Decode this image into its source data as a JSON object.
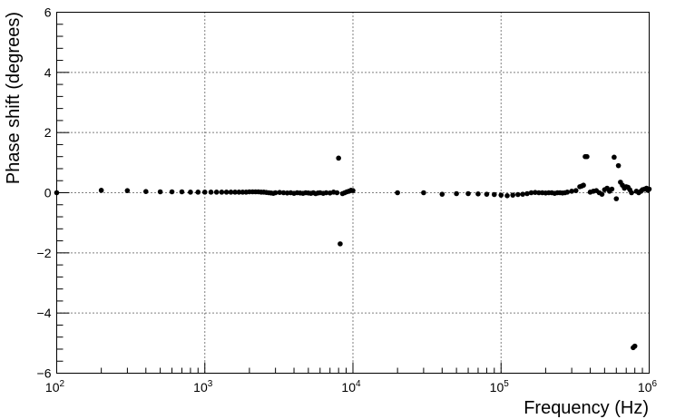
{
  "chart_data": {
    "type": "scatter",
    "xlabel": "Frequency (Hz)",
    "ylabel": "Phase shift (degrees)",
    "xscale": "log",
    "xlim": [
      100,
      1000000
    ],
    "ylim": [
      -6,
      6
    ],
    "grid": true,
    "x_tick_labels": [
      {
        "base": "10",
        "exp": "2",
        "value": 100
      },
      {
        "base": "10",
        "exp": "3",
        "value": 1000
      },
      {
        "base": "10",
        "exp": "4",
        "value": 10000
      },
      {
        "base": "10",
        "exp": "5",
        "value": 100000
      },
      {
        "base": "10",
        "exp": "6",
        "value": 1000000
      }
    ],
    "y_tick_labels": [
      {
        "label": "6",
        "value": 6
      },
      {
        "label": "4",
        "value": 4
      },
      {
        "label": "2",
        "value": 2
      },
      {
        "label": "0",
        "value": 0
      },
      {
        "label": "−2",
        "value": -2
      },
      {
        "label": "−4",
        "value": -4
      },
      {
        "label": "−6",
        "value": -6
      }
    ],
    "marker_color": "#000000",
    "points": [
      [
        100,
        0.0
      ],
      [
        200,
        0.08
      ],
      [
        300,
        0.07
      ],
      [
        400,
        0.04
      ],
      [
        500,
        0.03
      ],
      [
        600,
        0.03
      ],
      [
        700,
        0.03
      ],
      [
        800,
        0.02
      ],
      [
        900,
        0.02
      ],
      [
        1000,
        0.02
      ],
      [
        1100,
        0.02
      ],
      [
        1200,
        0.02
      ],
      [
        1300,
        0.02
      ],
      [
        1400,
        0.02
      ],
      [
        1500,
        0.02
      ],
      [
        1600,
        0.02
      ],
      [
        1700,
        0.02
      ],
      [
        1800,
        0.02
      ],
      [
        1900,
        0.02
      ],
      [
        2000,
        0.03
      ],
      [
        2100,
        0.03
      ],
      [
        2200,
        0.03
      ],
      [
        2300,
        0.03
      ],
      [
        2400,
        0.02
      ],
      [
        2500,
        0.02
      ],
      [
        2600,
        0.01
      ],
      [
        2700,
        0.0
      ],
      [
        2800,
        -0.01
      ],
      [
        2900,
        -0.02
      ],
      [
        3000,
        0.0
      ],
      [
        3200,
        0.01
      ],
      [
        3400,
        0.0
      ],
      [
        3600,
        -0.01
      ],
      [
        3800,
        0.0
      ],
      [
        4000,
        -0.02
      ],
      [
        4200,
        0.0
      ],
      [
        4400,
        -0.01
      ],
      [
        4600,
        -0.02
      ],
      [
        4800,
        0.0
      ],
      [
        5000,
        -0.01
      ],
      [
        5200,
        -0.02
      ],
      [
        5400,
        0.0
      ],
      [
        5600,
        -0.03
      ],
      [
        5800,
        -0.01
      ],
      [
        6000,
        0.0
      ],
      [
        6300,
        -0.02
      ],
      [
        6600,
        0.0
      ],
      [
        7000,
        -0.01
      ],
      [
        7400,
        0.02
      ],
      [
        7800,
        0.0
      ],
      [
        8000,
        1.15
      ],
      [
        8200,
        -1.7
      ],
      [
        8500,
        -0.03
      ],
      [
        8800,
        0.0
      ],
      [
        9100,
        0.03
      ],
      [
        9400,
        0.05
      ],
      [
        9700,
        0.08
      ],
      [
        10000,
        0.07
      ],
      [
        20000,
        0.0
      ],
      [
        30000,
        0.0
      ],
      [
        40000,
        -0.05
      ],
      [
        50000,
        -0.03
      ],
      [
        60000,
        -0.03
      ],
      [
        70000,
        -0.04
      ],
      [
        80000,
        -0.05
      ],
      [
        90000,
        -0.06
      ],
      [
        100000,
        -0.08
      ],
      [
        110000,
        -0.1
      ],
      [
        120000,
        -0.08
      ],
      [
        130000,
        -0.06
      ],
      [
        140000,
        -0.05
      ],
      [
        150000,
        -0.03
      ],
      [
        160000,
        0.0
      ],
      [
        170000,
        0.01
      ],
      [
        180000,
        0.0
      ],
      [
        190000,
        0.0
      ],
      [
        200000,
        -0.01
      ],
      [
        210000,
        0.0
      ],
      [
        220000,
        0.0
      ],
      [
        230000,
        -0.02
      ],
      [
        240000,
        0.0
      ],
      [
        250000,
        0.0
      ],
      [
        260000,
        -0.01
      ],
      [
        270000,
        0.0
      ],
      [
        280000,
        0.02
      ],
      [
        300000,
        0.05
      ],
      [
        320000,
        0.07
      ],
      [
        340000,
        0.2
      ],
      [
        350000,
        0.22
      ],
      [
        360000,
        0.25
      ],
      [
        370000,
        1.2
      ],
      [
        380000,
        1.2
      ],
      [
        400000,
        0.02
      ],
      [
        420000,
        0.05
      ],
      [
        440000,
        0.07
      ],
      [
        460000,
        0.0
      ],
      [
        480000,
        -0.05
      ],
      [
        500000,
        0.1
      ],
      [
        520000,
        0.15
      ],
      [
        540000,
        0.05
      ],
      [
        560000,
        0.12
      ],
      [
        580000,
        1.18
      ],
      [
        600000,
        -0.2
      ],
      [
        620000,
        0.9
      ],
      [
        640000,
        0.35
      ],
      [
        660000,
        0.25
      ],
      [
        680000,
        0.15
      ],
      [
        700000,
        0.2
      ],
      [
        720000,
        0.18
      ],
      [
        740000,
        0.1
      ],
      [
        760000,
        0.0
      ],
      [
        780000,
        -5.15
      ],
      [
        800000,
        -5.1
      ],
      [
        820000,
        0.05
      ],
      [
        850000,
        0.0
      ],
      [
        880000,
        0.05
      ],
      [
        900000,
        0.1
      ],
      [
        930000,
        0.12
      ],
      [
        960000,
        0.15
      ],
      [
        980000,
        0.08
      ],
      [
        1000000,
        0.12
      ]
    ]
  }
}
